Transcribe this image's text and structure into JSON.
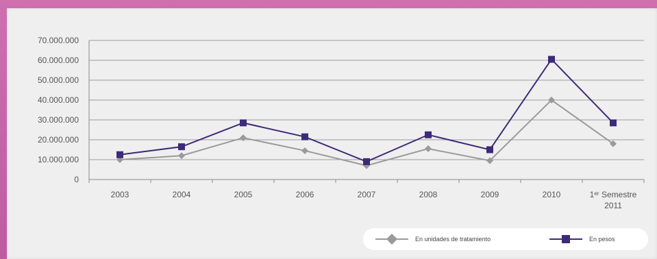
{
  "chart_data": {
    "type": "line",
    "title": "",
    "xlabel": "",
    "ylabel": "",
    "categories": [
      "2003",
      "2004",
      "2005",
      "2006",
      "2007",
      "2008",
      "2009",
      "2010",
      "1ᵉʳ Semestre 2011"
    ],
    "category_lines": [
      [
        "2003"
      ],
      [
        "2004"
      ],
      [
        "2005"
      ],
      [
        "2006"
      ],
      [
        "2007"
      ],
      [
        "2008"
      ],
      [
        "2009"
      ],
      [
        "2010"
      ],
      [
        "1ᵉʳ Semestre",
        "2011"
      ]
    ],
    "yticks": [
      "0",
      "10.000.000",
      "20.000.000",
      "30.000.000",
      "40.000.000",
      "50.000.000",
      "60.000.000",
      "70.000.000"
    ],
    "ylim": [
      0,
      70000000
    ],
    "grid": true,
    "legend_position": "bottom-right",
    "series": [
      {
        "name": "En unidades de tratamiento",
        "color": "#9a9a9a",
        "marker": "diamond",
        "values": [
          10000000,
          12000000,
          21000000,
          14500000,
          7000000,
          15500000,
          9500000,
          40000000,
          18000000
        ]
      },
      {
        "name": "En pesos",
        "color": "#3d2a78",
        "marker": "square",
        "values": [
          12500000,
          16500000,
          28500000,
          21500000,
          9000000,
          22500000,
          15000000,
          60500000,
          28500000
        ]
      }
    ]
  }
}
